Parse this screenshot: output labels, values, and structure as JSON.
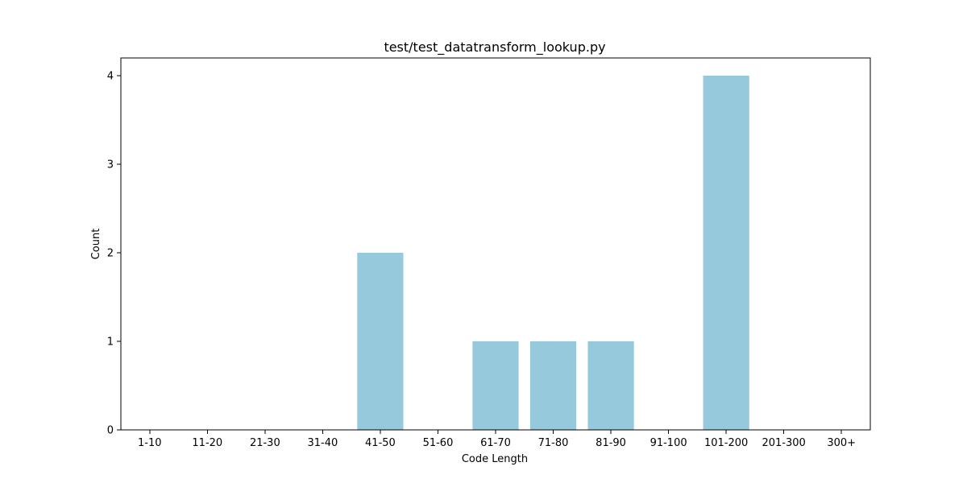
{
  "chart_data": {
    "type": "bar",
    "title": "test/test_datatransform_lookup.py",
    "xlabel": "Code Length",
    "ylabel": "Count",
    "categories": [
      "1-10",
      "11-20",
      "21-30",
      "31-40",
      "41-50",
      "51-60",
      "61-70",
      "71-80",
      "81-90",
      "91-100",
      "101-200",
      "201-300",
      "300+"
    ],
    "values": [
      0,
      0,
      0,
      0,
      2,
      0,
      1,
      1,
      1,
      0,
      4,
      0,
      0
    ],
    "yticks": [
      "0",
      "1",
      "2",
      "3",
      "4"
    ],
    "ylim": [
      0,
      4.2
    ],
    "bar_color": "#96c9dc",
    "grid": false,
    "legend": false
  }
}
